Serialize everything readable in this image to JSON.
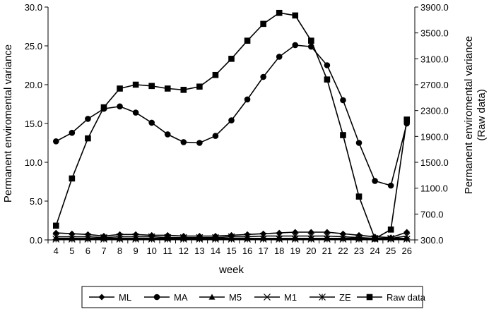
{
  "chart_data": {
    "type": "line",
    "x": [
      4,
      5,
      6,
      7,
      8,
      9,
      10,
      11,
      12,
      13,
      14,
      15,
      16,
      17,
      18,
      19,
      20,
      21,
      22,
      23,
      24,
      25,
      26
    ],
    "xlabel": "week",
    "ylabel_left": "Permanent enviromental variance",
    "ylabel_right_lines": [
      "Permanent enviromental variance",
      "(Raw data)"
    ],
    "ylim_left": [
      0,
      30
    ],
    "yticks_left": [
      "0.0",
      "5.0",
      "10.0",
      "15.0",
      "20.0",
      "25.0",
      "30.0"
    ],
    "ylim_right": [
      300,
      3900
    ],
    "yticks_right": [
      "300.0",
      "700.0",
      "1100.0",
      "1500.0",
      "1900.0",
      "2300.0",
      "2700.0",
      "3100.0",
      "3500.0",
      "3900.0"
    ],
    "grid": false,
    "legend_position": "bottom",
    "series": [
      {
        "name": "ML",
        "axis": "left",
        "marker": "diamond",
        "values": [
          0.9,
          0.8,
          0.7,
          0.5,
          0.7,
          0.7,
          0.6,
          0.6,
          0.5,
          0.5,
          0.5,
          0.6,
          0.7,
          0.8,
          0.9,
          1.0,
          1.0,
          1.0,
          0.8,
          0.6,
          0.4,
          0.3,
          1.0
        ]
      },
      {
        "name": "MA",
        "axis": "left",
        "marker": "circle",
        "values": [
          12.7,
          13.8,
          15.6,
          16.9,
          17.2,
          16.4,
          15.1,
          13.6,
          12.6,
          12.5,
          13.4,
          15.4,
          18.1,
          21.0,
          23.6,
          25.1,
          24.9,
          22.5,
          18.0,
          12.5,
          7.6,
          7.0,
          15.0
        ]
      },
      {
        "name": "M5",
        "axis": "left",
        "marker": "triangle",
        "values": [
          0.2,
          0.2,
          0.2,
          0.2,
          0.2,
          0.2,
          0.2,
          0.2,
          0.2,
          0.2,
          0.2,
          0.2,
          0.2,
          0.2,
          0.2,
          0.2,
          0.2,
          0.2,
          0.2,
          0.2,
          0.2,
          0.2,
          0.2
        ]
      },
      {
        "name": "M1",
        "axis": "left",
        "marker": "x",
        "values": [
          0.4,
          0.4,
          0.4,
          0.3,
          0.4,
          0.4,
          0.4,
          0.3,
          0.3,
          0.3,
          0.3,
          0.4,
          0.4,
          0.5,
          0.5,
          0.5,
          0.5,
          0.5,
          0.4,
          0.3,
          0.2,
          0.2,
          0.5
        ]
      },
      {
        "name": "ZE",
        "axis": "left",
        "marker": "star",
        "values": [
          0.1,
          0.1,
          0.1,
          0.1,
          0.1,
          0.1,
          0.1,
          0.1,
          0.1,
          0.1,
          0.1,
          0.1,
          0.1,
          0.1,
          0.1,
          0.1,
          0.1,
          0.1,
          0.1,
          0.1,
          0.1,
          0.1,
          0.1
        ]
      },
      {
        "name": "Raw data",
        "axis": "right",
        "marker": "square",
        "values": [
          520,
          1250,
          1870,
          2350,
          2640,
          2700,
          2680,
          2640,
          2620,
          2670,
          2850,
          3100,
          3380,
          3640,
          3810,
          3770,
          3380,
          2780,
          1920,
          970,
          320,
          460,
          2160
        ]
      }
    ]
  }
}
